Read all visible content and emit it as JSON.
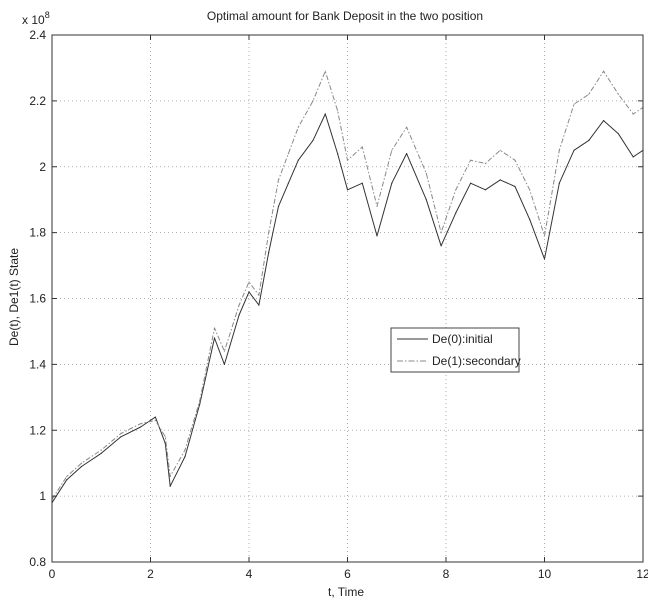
{
  "chart_data": {
    "type": "line",
    "title": "Optimal amount for Bank Deposit in the two position",
    "xlabel": "t, Time",
    "ylabel": "De(t), De1(t) State",
    "y_multiplier": "x 10",
    "y_multiplier_exponent": "8",
    "xlim": [
      0,
      12
    ],
    "ylim": [
      0.8,
      2.4
    ],
    "x_ticks": [
      "0",
      "2",
      "4",
      "6",
      "8",
      "10",
      "12"
    ],
    "y_ticks": [
      "0.8",
      "1",
      "1.2",
      "1.4",
      "1.6",
      "1.8",
      "2",
      "2.2",
      "2.4"
    ],
    "grid": true,
    "legend_position": "center-right",
    "series": [
      {
        "name": "De(0):initial",
        "color": "#333333",
        "dash": "solid",
        "x": [
          0,
          0.3,
          0.6,
          1.0,
          1.4,
          1.8,
          2.1,
          2.3,
          2.4,
          2.7,
          3.0,
          3.3,
          3.5,
          3.8,
          4.0,
          4.2,
          4.4,
          4.6,
          4.8,
          5.0,
          5.3,
          5.55,
          5.8,
          6.0,
          6.3,
          6.6,
          6.9,
          7.2,
          7.6,
          7.9,
          8.2,
          8.5,
          8.8,
          9.1,
          9.4,
          9.7,
          10.0,
          10.3,
          10.6,
          10.9,
          11.2,
          11.5,
          11.8,
          12.0
        ],
        "values": [
          0.98,
          1.05,
          1.09,
          1.13,
          1.18,
          1.21,
          1.24,
          1.16,
          1.03,
          1.12,
          1.28,
          1.48,
          1.4,
          1.55,
          1.62,
          1.58,
          1.74,
          1.88,
          1.95,
          2.02,
          2.08,
          2.16,
          2.04,
          1.93,
          1.95,
          1.79,
          1.95,
          2.04,
          1.9,
          1.76,
          1.86,
          1.95,
          1.93,
          1.96,
          1.94,
          1.84,
          1.72,
          1.95,
          2.05,
          2.08,
          2.14,
          2.1,
          2.03,
          2.05
        ]
      },
      {
        "name": "De(1):secondary",
        "color": "#888888",
        "dash": "dashdot",
        "x": [
          0,
          0.3,
          0.6,
          1.0,
          1.4,
          1.8,
          2.1,
          2.3,
          2.4,
          2.7,
          3.0,
          3.3,
          3.5,
          3.8,
          4.0,
          4.2,
          4.4,
          4.6,
          4.8,
          5.0,
          5.3,
          5.55,
          5.8,
          6.0,
          6.3,
          6.6,
          6.9,
          7.2,
          7.6,
          7.9,
          8.2,
          8.5,
          8.8,
          9.1,
          9.4,
          9.7,
          10.0,
          10.3,
          10.6,
          10.9,
          11.2,
          11.5,
          11.8,
          12.0
        ],
        "values": [
          0.99,
          1.06,
          1.1,
          1.14,
          1.19,
          1.22,
          1.23,
          1.18,
          1.06,
          1.14,
          1.29,
          1.51,
          1.44,
          1.58,
          1.65,
          1.61,
          1.8,
          1.96,
          2.04,
          2.12,
          2.2,
          2.29,
          2.17,
          2.02,
          2.06,
          1.88,
          2.05,
          2.12,
          1.98,
          1.8,
          1.93,
          2.02,
          2.01,
          2.05,
          2.02,
          1.93,
          1.79,
          2.05,
          2.19,
          2.22,
          2.29,
          2.22,
          2.16,
          2.18
        ]
      }
    ]
  }
}
